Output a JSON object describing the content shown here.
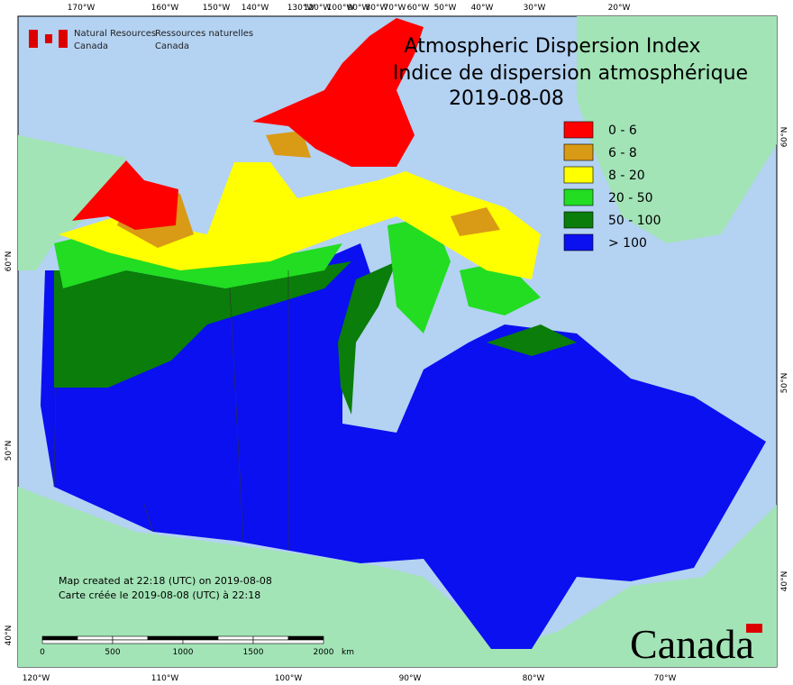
{
  "header": {
    "en": [
      "Natural Resources",
      "Canada"
    ],
    "fr": [
      "Ressources naturelles",
      "Canada"
    ]
  },
  "title": [
    "Atmospheric Dispersion Index",
    "Indice de dispersion atmosphérique"
  ],
  "date": "2019-08-08",
  "legend": {
    "items": [
      {
        "label": "0 - 6",
        "color": "#ff0000"
      },
      {
        "label": "6 - 8",
        "color": "#d99a16"
      },
      {
        "label": "8 - 20",
        "color": "#ffff00"
      },
      {
        "label": "20 - 50",
        "color": "#22dd22"
      },
      {
        "label": "50 - 100",
        "color": "#0a7d0a"
      },
      {
        "label": "> 100",
        "color": "#0a10f0"
      }
    ]
  },
  "graticule": {
    "top": [
      "170°W",
      "160°W",
      "150°W",
      "140°W",
      "130°W",
      "120°W",
      "100°W",
      "90°W",
      "80°W",
      "70°W",
      "60°W",
      "50°W",
      "40°W",
      "30°W",
      "20°W"
    ],
    "bottom": [
      "120°W",
      "110°W",
      "100°W",
      "90°W",
      "80°W",
      "70°W"
    ],
    "left": [
      "60°N",
      "50°N",
      "40°N"
    ],
    "right": [
      "60°N",
      "50°N",
      "40°N"
    ]
  },
  "notes": [
    "Map created at 22:18 (UTC) on 2019-08-08",
    "Carte créée le 2019-08-08 (UTC) à 22:18"
  ],
  "scale_bar": {
    "ticks": [
      0,
      500,
      1000,
      1500,
      2000
    ],
    "unit": "km"
  },
  "wordmark": "Canada"
}
